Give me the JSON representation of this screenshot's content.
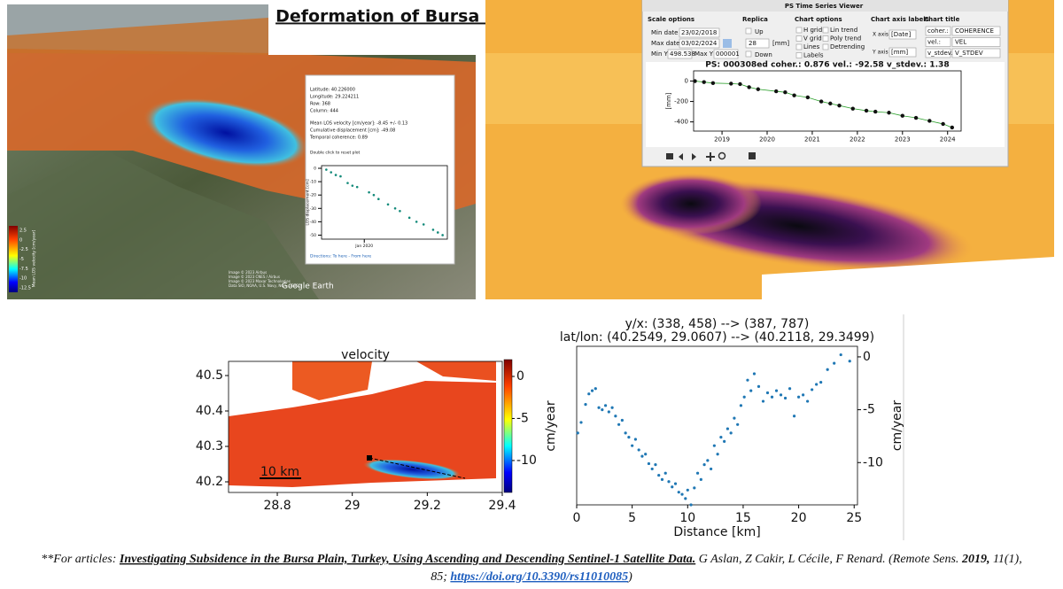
{
  "title": "Deformation of Bursa Plain in Türkiye",
  "earth_panel": {
    "popup": {
      "lines": [
        "Latitude: 40.226000",
        "Longitude: 29.224211",
        "Row: 368",
        "Column: 444",
        "Mean LOS velocity [cm/year]: -8.45 +/- 0.13",
        "Cumulative displacement [cm]: -49.08",
        "Temporal coherence: 0.89"
      ],
      "note": "Double click to reset plot",
      "directions": "Directions: To here - From here"
    },
    "colorbar": {
      "label": "Mean LOS velocity [cm/year]",
      "ticks": [
        2.5,
        0,
        -2.5,
        -5,
        -7.5,
        -10,
        -12.5
      ]
    },
    "attribution": [
      "Image © 2023 Airbus",
      "Image © 2023 CNES / Airbus",
      "Image © 2023 Maxar Technologies",
      "Data SIO, NOAA, U.S. Navy, NGA, GEBCO"
    ],
    "logo": "Google Earth"
  },
  "ps_viewer": {
    "window_title": "PS Time Series Viewer",
    "scale": {
      "heading": "Scale options",
      "min_date_label": "Min date",
      "min_date": "23/02/2018",
      "max_date_label": "Max date",
      "max_date": "03/02/2024",
      "min_y_label": "Min Y",
      "min_y": "498.538",
      "max_y_label": "Max Y",
      "max_y": "000001"
    },
    "replica": {
      "heading": "Replica",
      "up": "Up",
      "value": "28",
      "unit": "[mm]",
      "down": "Down"
    },
    "chart_options": {
      "heading": "Chart options",
      "items": [
        "H grid",
        "Lin trend",
        "V grid",
        "Poly trend",
        "Lines",
        "Detrending",
        "Labels"
      ]
    },
    "axis_labels": {
      "heading": "Chart axis labels",
      "x_label": "X axis label",
      "x_value": "[Date]",
      "y_label": "Y axis label",
      "y_value": "[mm]"
    },
    "chart_title": {
      "heading": "Chart title",
      "rows": [
        [
          "coher.:",
          "COHERENCE"
        ],
        [
          "vel.:",
          "VEL"
        ],
        [
          "v_stdev.:",
          "V_STDEV"
        ]
      ]
    }
  },
  "chart_data": [
    {
      "type": "line",
      "title": "PS: 000308ed coher.: 0.876 vel.: -92.58 v_stdev.: 1.38",
      "ylabel": "[mm]",
      "color": "#2ca02c",
      "marker_color": "#111111",
      "x": [
        2018.4,
        2018.6,
        2018.8,
        2019.2,
        2019.4,
        2019.6,
        2019.8,
        2020.2,
        2020.4,
        2020.6,
        2020.9,
        2021.2,
        2021.4,
        2021.6,
        2021.9,
        2022.2,
        2022.4,
        2022.7,
        2023.0,
        2023.3,
        2023.6,
        2023.9,
        2024.1
      ],
      "values": [
        0,
        -10,
        -20,
        -25,
        -30,
        -60,
        -80,
        -100,
        -110,
        -140,
        -160,
        -200,
        -220,
        -240,
        -270,
        -290,
        -300,
        -310,
        -340,
        -360,
        -390,
        -420,
        -455
      ],
      "xlim": [
        2018.37,
        2024.3
      ],
      "ylim": [
        -490,
        100
      ],
      "xticks": [
        2019,
        2020,
        2021,
        2022,
        2023,
        2024
      ],
      "yticks": [
        0,
        -200,
        -400
      ],
      "y_axis_side": "left"
    },
    {
      "type": "map",
      "title": "velocity",
      "annotation": "10 km",
      "xlim": [
        28.67,
        29.4
      ],
      "ylim": [
        40.17,
        40.54
      ],
      "xticks": [
        28.8,
        29.0,
        29.2,
        29.4
      ],
      "yticks": [
        40.2,
        40.3,
        40.4,
        40.5
      ],
      "y_axis_side": "left",
      "colorbar": {
        "label": "cm/year",
        "lim": [
          -13.8,
          2
        ],
        "ticks": [
          0,
          -5,
          -10
        ],
        "colormap": "jet"
      }
    },
    {
      "type": "scatter",
      "title": [
        "y/x: (338, 458) --> (387, 787)",
        "lat/lon: (40.2549, 29.0607) --> (40.2118, 29.3499)"
      ],
      "xlabel": "Distance [km]",
      "ylabel": "cm/year",
      "color": "#1f77b4",
      "x": [
        0.1,
        0.4,
        0.8,
        1.1,
        1.4,
        1.7,
        2.0,
        2.3,
        2.6,
        2.9,
        3.2,
        3.5,
        3.8,
        4.1,
        4.4,
        4.7,
        5.0,
        5.3,
        5.6,
        5.9,
        6.2,
        6.5,
        6.8,
        7.1,
        7.4,
        7.7,
        8.0,
        8.3,
        8.6,
        8.9,
        9.2,
        9.5,
        9.8,
        10.0,
        10.3,
        10.6,
        10.9,
        11.2,
        11.5,
        11.8,
        12.1,
        12.4,
        12.7,
        13.0,
        13.3,
        13.6,
        13.9,
        14.2,
        14.5,
        14.8,
        15.1,
        15.4,
        15.7,
        16.0,
        16.4,
        16.8,
        17.2,
        17.6,
        18.0,
        18.4,
        18.8,
        19.2,
        19.6,
        20.0,
        20.4,
        20.8,
        21.2,
        21.6,
        22.0,
        22.6,
        23.2,
        23.8,
        24.6
      ],
      "values": [
        -7.2,
        -6.2,
        -4.5,
        -3.5,
        -3.2,
        -3.0,
        -4.8,
        -5.0,
        -4.6,
        -5.2,
        -4.8,
        -5.6,
        -6.4,
        -6.0,
        -7.2,
        -7.6,
        -8.4,
        -7.8,
        -8.8,
        -9.4,
        -9.2,
        -10.1,
        -10.6,
        -10.2,
        -11.2,
        -11.6,
        -11.0,
        -11.8,
        -12.3,
        -12.0,
        -12.8,
        -13.0,
        -13.4,
        -12.6,
        -14.0,
        -12.4,
        -11.0,
        -11.6,
        -10.2,
        -9.8,
        -10.6,
        -8.4,
        -9.2,
        -7.6,
        -8.0,
        -6.8,
        -7.2,
        -5.8,
        -6.4,
        -4.6,
        -3.8,
        -2.2,
        -3.2,
        -1.6,
        -2.8,
        -4.2,
        -3.4,
        -3.8,
        -3.2,
        -3.6,
        -3.9,
        -3.0,
        -5.6,
        -3.8,
        -3.6,
        -4.2,
        -3.1,
        -2.6,
        -2.4,
        -1.2,
        -0.6,
        0.2,
        -0.4
      ],
      "xlim": [
        0,
        25.3
      ],
      "ylim": [
        -14,
        1
      ],
      "xticks": [
        0,
        5,
        10,
        15,
        20,
        25
      ],
      "yticks": [
        0,
        -5,
        -10
      ],
      "y_axis_side": "right"
    },
    {
      "type": "scatter",
      "ylabel": "LOS displacement [cm]",
      "color": "#138a7a",
      "x": [
        2018.4,
        2018.6,
        2018.8,
        2019.0,
        2019.3,
        2019.5,
        2019.7,
        2020.2,
        2020.4,
        2020.6,
        2021.0,
        2021.3,
        2021.5,
        2021.9,
        2022.2,
        2022.5,
        2022.9,
        2023.1,
        2023.3
      ],
      "values": [
        -1,
        -3,
        -5,
        -6,
        -11,
        -13,
        -14,
        -18,
        -20,
        -23,
        -27,
        -30,
        -32,
        -37,
        -40,
        -42,
        -46,
        -48,
        -50
      ],
      "xlim": [
        2018.2,
        2023.5
      ],
      "ylim": [
        -53,
        2
      ],
      "xticks": [
        {
          "value": 2020,
          "label": "Jan 2020"
        }
      ],
      "yticks": [
        0,
        -10,
        -20,
        -30,
        -40,
        -50
      ],
      "y_axis_side": "left"
    }
  ],
  "footer": {
    "line1": [
      "**For articles: ",
      "Investigating Subsidence in the Bursa Plain, Turkey, Using Ascending and Descending Sentinel-1 Satellite Data.",
      " G Aslan, Z Cakir, L Cécile, F Renard. (Remote Sens. ",
      "2019,",
      " 11(1),"
    ],
    "line2": [
      "85; ",
      "https://doi.org/10.3390/rs11010085",
      ")"
    ]
  }
}
